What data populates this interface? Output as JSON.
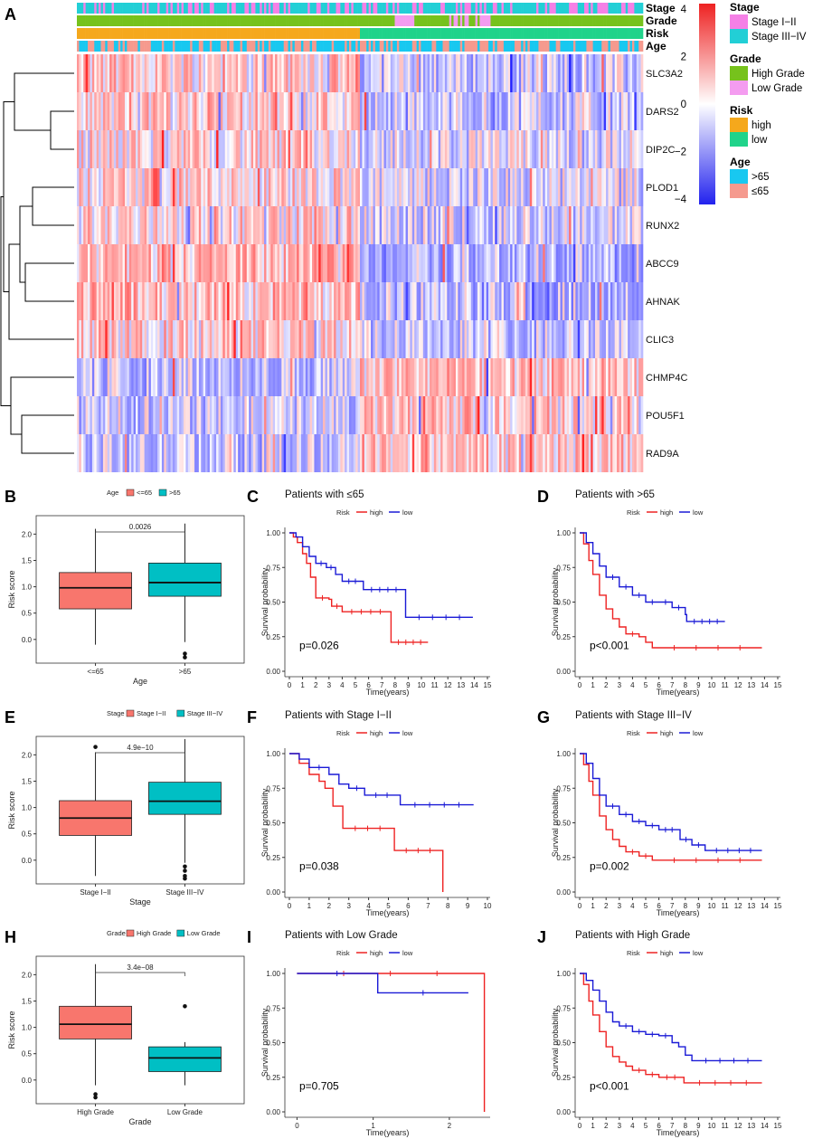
{
  "chart_data": [
    {
      "panel": "A",
      "type": "heatmap",
      "annotation_tracks": [
        "Stage",
        "Grade",
        "Risk",
        "Age"
      ],
      "genes": [
        "SLC3A2",
        "DARS2",
        "DIP2C",
        "PLOD1",
        "RUNX2",
        "ABCC9",
        "AHNAK",
        "CLIC3",
        "CHMP4C",
        "POU5F1",
        "RAD9A"
      ],
      "colorbar": {
        "ticks": [
          "4",
          "2",
          "0",
          "−2",
          "−4"
        ],
        "low": "#2222ee",
        "mid": "#ffffff",
        "high": "#ee2222"
      },
      "legend": [
        {
          "title": "Stage",
          "items": [
            {
              "label": "Stage I−II",
              "color": "#f580e6"
            },
            {
              "label": "Stage III−IV",
              "color": "#22cfd6"
            }
          ]
        },
        {
          "title": "Grade",
          "items": [
            {
              "label": "High Grade",
              "color": "#76c21c"
            },
            {
              "label": "Low Grade",
              "color": "#f49cf0"
            }
          ]
        },
        {
          "title": "Risk",
          "items": [
            {
              "label": "high",
              "color": "#f5a81c"
            },
            {
              "label": "low",
              "color": "#20d38a"
            }
          ]
        },
        {
          "title": "Age",
          "items": [
            {
              "label": ">65",
              "color": "#18c8f0"
            },
            {
              "label": "≤65",
              "color": "#f59a8e"
            }
          ]
        }
      ]
    },
    {
      "panel": "B",
      "type": "box",
      "legend_title": "Age",
      "legend": [
        "<=65",
        ">65"
      ],
      "categories": [
        "<=65",
        ">65"
      ],
      "xlabel": "Age",
      "ylabel": "Risk score",
      "pvalue": "0.0026",
      "yticks": [
        "2.0",
        "1.5",
        "1.0",
        "0.5",
        "0.0"
      ],
      "ylim": [
        -0.45,
        2.35
      ],
      "boxes": [
        {
          "q1": 0.58,
          "median": 0.98,
          "q3": 1.27,
          "lo": -0.1,
          "hi": 2.1,
          "outliers": []
        },
        {
          "q1": 0.82,
          "median": 1.08,
          "q3": 1.45,
          "lo": -0.05,
          "hi": 2.2,
          "outliers": [
            -0.27,
            -0.34
          ]
        }
      ]
    },
    {
      "panel": "C",
      "type": "line",
      "title": "Patients with ≤65",
      "legend_title": "Risk",
      "legend": [
        "high",
        "low"
      ],
      "xlabel": "Time(years)",
      "ylabel": "Survival probability",
      "pvalue": "p=0.026",
      "xticks": [
        "0",
        "1",
        "2",
        "3",
        "4",
        "5",
        "6",
        "7",
        "8",
        "9",
        "10",
        "11",
        "12",
        "13",
        "14",
        "15"
      ],
      "yticks": [
        "1.00",
        "0.75",
        "0.50",
        "0.25",
        "0.00"
      ],
      "xlim": [
        0,
        15
      ],
      "series": [
        {
          "name": "high",
          "points": [
            [
              0,
              1
            ],
            [
              0.3,
              0.97
            ],
            [
              0.6,
              0.93
            ],
            [
              1,
              0.85
            ],
            [
              1.3,
              0.78
            ],
            [
              1.6,
              0.68
            ],
            [
              2,
              0.53
            ],
            [
              3,
              0.52
            ],
            [
              3.2,
              0.47
            ],
            [
              4,
              0.43
            ],
            [
              7.6,
              0.43
            ],
            [
              7.7,
              0.21
            ],
            [
              10.5,
              0.21
            ]
          ]
        },
        {
          "name": "low",
          "points": [
            [
              0,
              1
            ],
            [
              0.5,
              0.97
            ],
            [
              1,
              0.9
            ],
            [
              1.5,
              0.83
            ],
            [
              2,
              0.78
            ],
            [
              2.8,
              0.75
            ],
            [
              3.5,
              0.7
            ],
            [
              4,
              0.65
            ],
            [
              5.5,
              0.65
            ],
            [
              5.6,
              0.59
            ],
            [
              8.7,
              0.59
            ],
            [
              8.8,
              0.39
            ],
            [
              13.9,
              0.39
            ]
          ]
        }
      ]
    },
    {
      "panel": "D",
      "type": "line",
      "title": "Patients with >65",
      "legend_title": "Risk",
      "legend": [
        "high",
        "low"
      ],
      "xlabel": "Time(years)",
      "ylabel": "Survival probability",
      "pvalue": "p<0.001",
      "xticks": [
        "0",
        "1",
        "2",
        "3",
        "4",
        "5",
        "6",
        "7",
        "8",
        "9",
        "10",
        "11",
        "12",
        "13",
        "14",
        "15"
      ],
      "yticks": [
        "1.00",
        "0.75",
        "0.50",
        "0.25",
        "0.00"
      ],
      "xlim": [
        0,
        15
      ],
      "series": [
        {
          "name": "high",
          "points": [
            [
              0,
              1
            ],
            [
              0.3,
              0.92
            ],
            [
              0.7,
              0.8
            ],
            [
              1,
              0.7
            ],
            [
              1.5,
              0.55
            ],
            [
              2,
              0.45
            ],
            [
              2.5,
              0.38
            ],
            [
              3,
              0.32
            ],
            [
              3.5,
              0.27
            ],
            [
              4.5,
              0.25
            ],
            [
              5,
              0.21
            ],
            [
              5.5,
              0.17
            ],
            [
              13.8,
              0.17
            ]
          ]
        },
        {
          "name": "low",
          "points": [
            [
              0,
              1
            ],
            [
              0.5,
              0.93
            ],
            [
              1,
              0.85
            ],
            [
              1.5,
              0.76
            ],
            [
              2,
              0.68
            ],
            [
              3,
              0.61
            ],
            [
              4,
              0.55
            ],
            [
              5,
              0.5
            ],
            [
              6,
              0.5
            ],
            [
              7,
              0.46
            ],
            [
              8,
              0.41
            ],
            [
              8.1,
              0.36
            ],
            [
              11,
              0.36
            ]
          ]
        }
      ]
    },
    {
      "panel": "E",
      "type": "box",
      "legend_title": "Stage",
      "legend": [
        "Stage I−II",
        "Stage III−IV"
      ],
      "categories": [
        "Stage I−II",
        "Stage III−IV"
      ],
      "xlabel": "Stage",
      "ylabel": "Risk score",
      "pvalue": "4.9e−10",
      "yticks": [
        "2.0",
        "1.5",
        "1.0",
        "0.5",
        "0.0"
      ],
      "ylim": [
        -0.45,
        2.35
      ],
      "boxes": [
        {
          "q1": 0.47,
          "median": 0.8,
          "q3": 1.13,
          "lo": -0.3,
          "hi": 2.05,
          "outliers": [
            2.15
          ]
        },
        {
          "q1": 0.87,
          "median": 1.12,
          "q3": 1.48,
          "lo": -0.05,
          "hi": 2.3,
          "outliers": [
            -0.12,
            -0.2,
            -0.3,
            -0.35
          ]
        }
      ]
    },
    {
      "panel": "F",
      "type": "line",
      "title": "Patients with Stage I−II",
      "legend_title": "Risk",
      "legend": [
        "high",
        "low"
      ],
      "xlabel": "Time(years)",
      "ylabel": "Survival probability",
      "pvalue": "p=0.038",
      "xticks": [
        "0",
        "1",
        "2",
        "3",
        "4",
        "5",
        "6",
        "7",
        "8",
        "9",
        "10"
      ],
      "yticks": [
        "1.00",
        "0.75",
        "0.50",
        "0.25",
        "0.00"
      ],
      "xlim": [
        0,
        10
      ],
      "series": [
        {
          "name": "high",
          "points": [
            [
              0,
              1
            ],
            [
              0.5,
              0.93
            ],
            [
              1,
              0.85
            ],
            [
              1.5,
              0.8
            ],
            [
              1.8,
              0.75
            ],
            [
              2.2,
              0.62
            ],
            [
              2.7,
              0.46
            ],
            [
              5.2,
              0.46
            ],
            [
              5.3,
              0.3
            ],
            [
              7.7,
              0.3
            ],
            [
              7.75,
              0
            ]
          ]
        },
        {
          "name": "low",
          "points": [
            [
              0,
              1
            ],
            [
              0.5,
              0.96
            ],
            [
              1,
              0.9
            ],
            [
              2,
              0.85
            ],
            [
              2.5,
              0.78
            ],
            [
              3,
              0.75
            ],
            [
              3.8,
              0.7
            ],
            [
              5.5,
              0.7
            ],
            [
              5.6,
              0.63
            ],
            [
              9.3,
              0.63
            ]
          ]
        }
      ]
    },
    {
      "panel": "G",
      "type": "line",
      "title": "Patients with Stage III−IV",
      "legend_title": "Risk",
      "legend": [
        "high",
        "low"
      ],
      "xlabel": "Time(years)",
      "ylabel": "Survival probability",
      "pvalue": "p=0.002",
      "xticks": [
        "0",
        "1",
        "2",
        "3",
        "4",
        "5",
        "6",
        "7",
        "8",
        "9",
        "10",
        "11",
        "12",
        "13",
        "14",
        "15"
      ],
      "yticks": [
        "1.00",
        "0.75",
        "0.50",
        "0.25",
        "0.00"
      ],
      "xlim": [
        0,
        15
      ],
      "series": [
        {
          "name": "high",
          "points": [
            [
              0,
              1
            ],
            [
              0.3,
              0.92
            ],
            [
              0.7,
              0.8
            ],
            [
              1,
              0.7
            ],
            [
              1.5,
              0.55
            ],
            [
              2,
              0.45
            ],
            [
              2.5,
              0.38
            ],
            [
              3,
              0.33
            ],
            [
              3.5,
              0.29
            ],
            [
              4.5,
              0.26
            ],
            [
              5.5,
              0.23
            ],
            [
              13.8,
              0.23
            ]
          ]
        },
        {
          "name": "low",
          "points": [
            [
              0,
              1
            ],
            [
              0.5,
              0.93
            ],
            [
              1,
              0.82
            ],
            [
              1.5,
              0.7
            ],
            [
              2,
              0.62
            ],
            [
              3,
              0.56
            ],
            [
              4,
              0.51
            ],
            [
              5,
              0.48
            ],
            [
              6,
              0.45
            ],
            [
              7.5,
              0.45
            ],
            [
              7.6,
              0.38
            ],
            [
              8.5,
              0.34
            ],
            [
              9.5,
              0.3
            ],
            [
              13.8,
              0.3
            ]
          ]
        }
      ]
    },
    {
      "panel": "H",
      "type": "box",
      "legend_title": "Grade",
      "legend": [
        "High Grade",
        "Low Grade"
      ],
      "categories": [
        "High Grade",
        "Low Grade"
      ],
      "xlabel": "Grade",
      "ylabel": "Risk score",
      "pvalue": "3.4e−08",
      "yticks": [
        "2.0",
        "1.5",
        "1.0",
        "0.5",
        "0.0"
      ],
      "ylim": [
        -0.45,
        2.35
      ],
      "boxes": [
        {
          "q1": 0.78,
          "median": 1.06,
          "q3": 1.4,
          "lo": -0.1,
          "hi": 2.2,
          "outliers": [
            -0.27,
            -0.33
          ]
        },
        {
          "q1": 0.16,
          "median": 0.42,
          "q3": 0.63,
          "lo": -0.1,
          "hi": 0.72,
          "outliers": [
            1.4
          ]
        }
      ]
    },
    {
      "panel": "I",
      "type": "line",
      "title": "Patients with Low Grade",
      "legend_title": "Risk",
      "legend": [
        "high",
        "low"
      ],
      "xlabel": "Time(years)",
      "ylabel": "Survival probability",
      "pvalue": "p=0.705",
      "xticks": [
        "0",
        "1",
        "2"
      ],
      "yticks": [
        "1.00",
        "0.75",
        "0.50",
        "0.25",
        "0.00"
      ],
      "xlim": [
        -0.1,
        2.5
      ],
      "series": [
        {
          "name": "high",
          "points": [
            [
              0,
              1
            ],
            [
              2.45,
              1
            ],
            [
              2.46,
              0
            ]
          ]
        },
        {
          "name": "low",
          "points": [
            [
              0,
              1
            ],
            [
              1.05,
              1
            ],
            [
              1.06,
              0.86
            ],
            [
              2.25,
              0.86
            ]
          ]
        }
      ]
    },
    {
      "panel": "J",
      "type": "line",
      "title": "Patients with High Grade",
      "legend_title": "Risk",
      "legend": [
        "high",
        "low"
      ],
      "xlabel": "Time(years)",
      "ylabel": "Survival probability",
      "pvalue": "p<0.001",
      "xticks": [
        "0",
        "1",
        "2",
        "3",
        "4",
        "5",
        "6",
        "7",
        "8",
        "9",
        "10",
        "11",
        "12",
        "13",
        "14",
        "15"
      ],
      "yticks": [
        "1.00",
        "0.75",
        "0.50",
        "0.25",
        "0.00"
      ],
      "xlim": [
        0,
        15
      ],
      "series": [
        {
          "name": "high",
          "points": [
            [
              0,
              1
            ],
            [
              0.3,
              0.92
            ],
            [
              0.7,
              0.8
            ],
            [
              1,
              0.7
            ],
            [
              1.5,
              0.58
            ],
            [
              2,
              0.47
            ],
            [
              2.5,
              0.4
            ],
            [
              3,
              0.36
            ],
            [
              3.5,
              0.33
            ],
            [
              4,
              0.3
            ],
            [
              5,
              0.27
            ],
            [
              6,
              0.25
            ],
            [
              7.8,
              0.25
            ],
            [
              7.9,
              0.21
            ],
            [
              13.8,
              0.21
            ]
          ]
        },
        {
          "name": "low",
          "points": [
            [
              0,
              1
            ],
            [
              0.5,
              0.95
            ],
            [
              1,
              0.88
            ],
            [
              1.5,
              0.8
            ],
            [
              2,
              0.72
            ],
            [
              2.5,
              0.65
            ],
            [
              3,
              0.62
            ],
            [
              4,
              0.58
            ],
            [
              5,
              0.56
            ],
            [
              6,
              0.55
            ],
            [
              7,
              0.5
            ],
            [
              7.5,
              0.47
            ],
            [
              8,
              0.41
            ],
            [
              8.5,
              0.37
            ],
            [
              13.8,
              0.37
            ]
          ]
        }
      ]
    }
  ],
  "colors": {
    "high": "#ee2222",
    "low": "#1a1ad6",
    "box1": "#f8766d",
    "box2": "#00bfc4"
  }
}
